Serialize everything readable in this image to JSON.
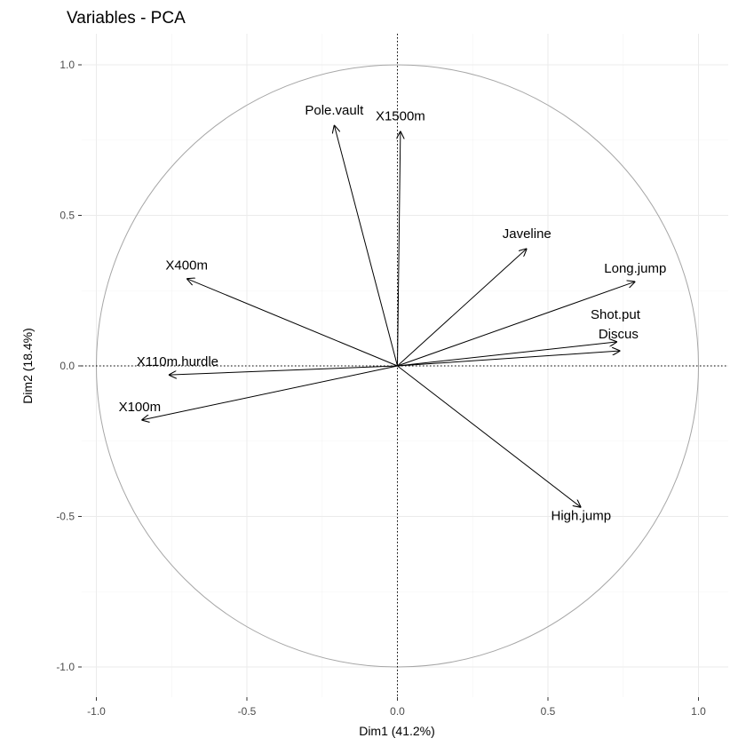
{
  "chart_data": {
    "type": "scatter",
    "subtype": "pca-variable-correlation-circle",
    "title": "Variables - PCA",
    "xlabel": "Dim1 (41.2%)",
    "ylabel": "Dim2 (18.4%)",
    "xlim": [
      -1.0,
      1.0
    ],
    "ylim": [
      -1.0,
      1.0
    ],
    "x_ticks": [
      -1.0,
      -0.5,
      0.0,
      0.5,
      1.0
    ],
    "y_ticks": [
      -1.0,
      -0.5,
      0.0,
      0.5,
      1.0
    ],
    "x_tick_labels": [
      "-1.0",
      "-0.5",
      "0.0",
      "0.5",
      "1.0"
    ],
    "y_tick_labels": [
      "-1.0",
      "-0.5",
      "0.0",
      "0.5",
      "1.0"
    ],
    "grid": true,
    "unit_circle": true,
    "arrow_color": "#000000",
    "circle_color": "#a6a6a6",
    "variables": [
      {
        "name": "X100m",
        "x": -0.85,
        "y": -0.18
      },
      {
        "name": "X110m.hurdle",
        "x": -0.76,
        "y": -0.03
      },
      {
        "name": "X400m",
        "x": -0.7,
        "y": 0.29
      },
      {
        "name": "Pole.vault",
        "x": -0.21,
        "y": 0.8
      },
      {
        "name": "X1500m",
        "x": 0.01,
        "y": 0.78
      },
      {
        "name": "Javeline",
        "x": 0.43,
        "y": 0.39
      },
      {
        "name": "Long.jump",
        "x": 0.79,
        "y": 0.28
      },
      {
        "name": "Shot.put",
        "x": 0.73,
        "y": 0.08
      },
      {
        "name": "Discus",
        "x": 0.74,
        "y": 0.05
      },
      {
        "name": "High.jump",
        "x": 0.61,
        "y": -0.47
      }
    ]
  }
}
